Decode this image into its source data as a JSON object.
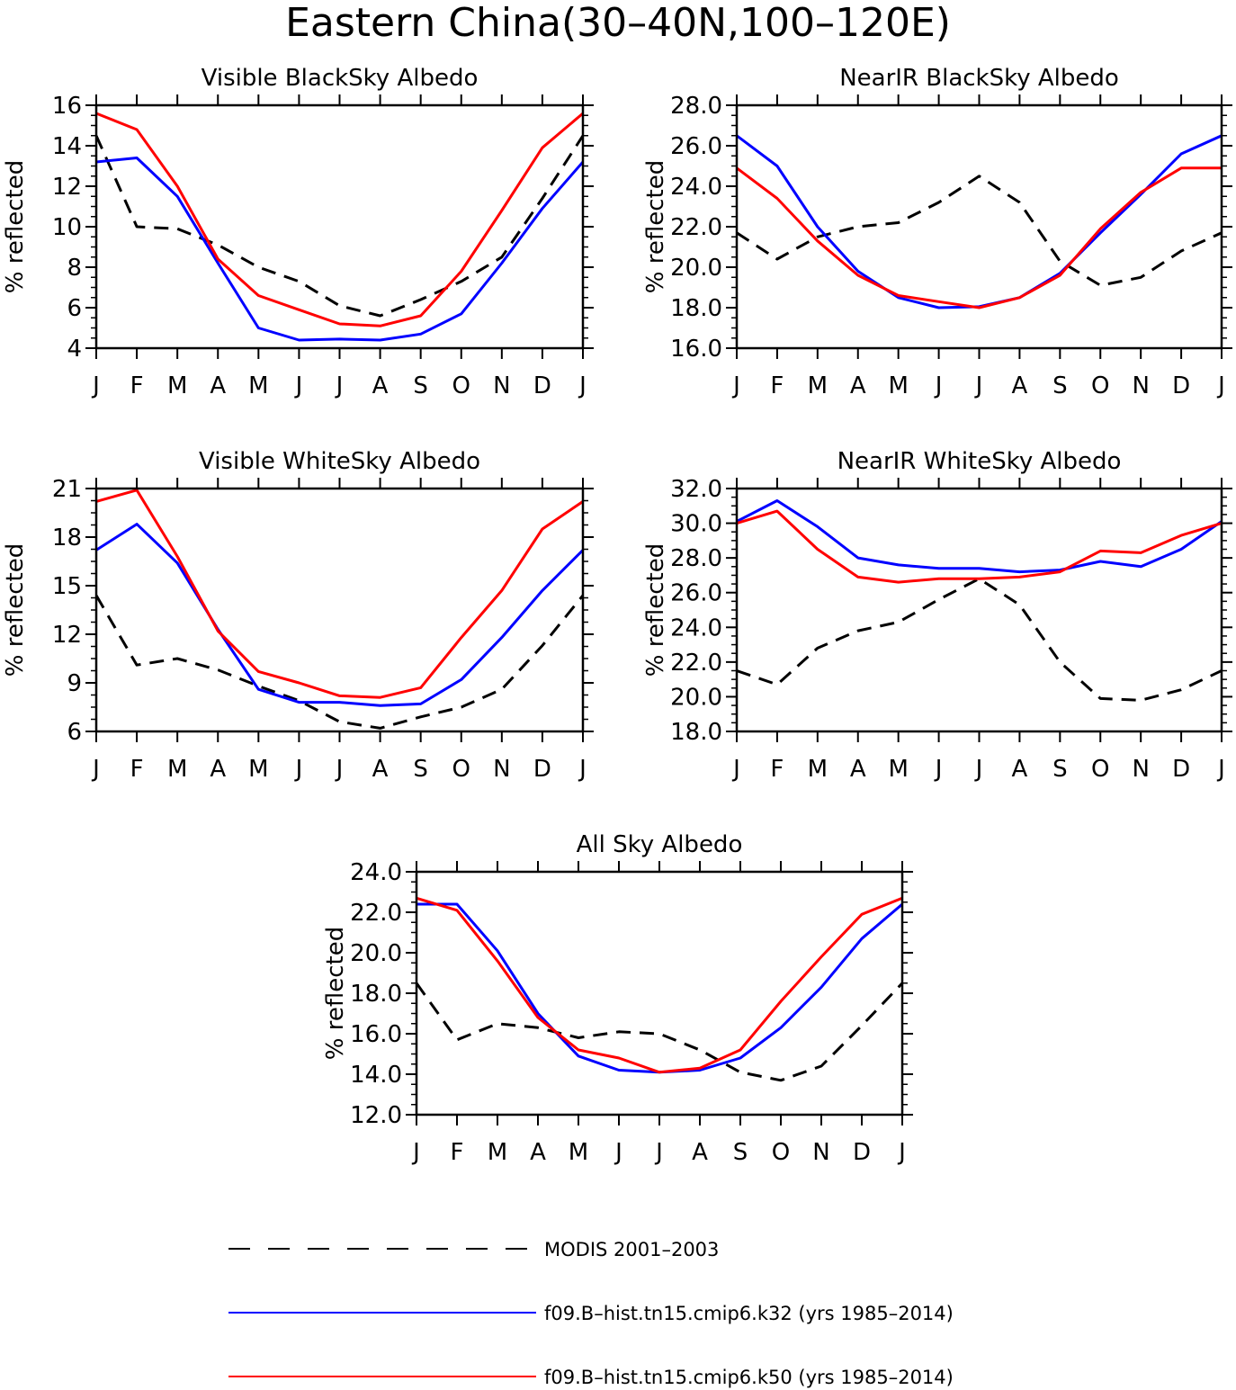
{
  "figure_title": "Eastern China(30–40N,100–120E)",
  "legend": [
    {
      "label": "MODIS 2001–2003",
      "color": "#000000",
      "dash": true
    },
    {
      "label": "f09.B–hist.tn15.cmip6.k32 (yrs 1985–2014)",
      "color": "#0000ff",
      "dash": false
    },
    {
      "label": "f09.B–hist.tn15.cmip6.k50 (yrs 1985–2014)",
      "color": "#ff0000",
      "dash": false
    }
  ],
  "chart_data": [
    {
      "type": "line",
      "title": "Visible BlackSky Albedo",
      "ylabel": "% reflected",
      "categories": [
        "J",
        "F",
        "M",
        "A",
        "M",
        "J",
        "J",
        "A",
        "S",
        "O",
        "N",
        "D",
        "J"
      ],
      "ylim": [
        4,
        16
      ],
      "yticks": [
        "4",
        "6",
        "8",
        "10",
        "12",
        "14",
        "16"
      ],
      "series": [
        {
          "name": "MODIS 2001–2003",
          "values": [
            14.5,
            10.0,
            9.9,
            9.1,
            8.0,
            7.3,
            6.1,
            5.6,
            6.4,
            7.3,
            8.5,
            11.4,
            14.5
          ]
        },
        {
          "name": "f09.B–hist.tn15.cmip6.k32 (yrs 1985–2014)",
          "values": [
            13.2,
            13.4,
            11.5,
            8.2,
            5.0,
            4.4,
            4.45,
            4.4,
            4.7,
            5.7,
            8.2,
            10.9,
            13.2
          ]
        },
        {
          "name": "f09.B–hist.tn15.cmip6.k50 (yrs 1985–2014)",
          "values": [
            15.6,
            14.8,
            12.0,
            8.4,
            6.6,
            5.9,
            5.2,
            5.1,
            5.6,
            7.8,
            10.8,
            13.9,
            15.6
          ]
        }
      ]
    },
    {
      "type": "line",
      "title": "NearIR BlackSky Albedo",
      "ylabel": "% reflected",
      "categories": [
        "J",
        "F",
        "M",
        "A",
        "M",
        "J",
        "J",
        "A",
        "S",
        "O",
        "N",
        "D",
        "J"
      ],
      "ylim": [
        16,
        28
      ],
      "yticks": [
        "16.0",
        "18.0",
        "20.0",
        "22.0",
        "24.0",
        "26.0",
        "28.0"
      ],
      "series": [
        {
          "name": "MODIS 2001–2003",
          "values": [
            21.7,
            20.4,
            21.5,
            22.0,
            22.2,
            23.2,
            24.5,
            23.2,
            20.3,
            19.1,
            19.5,
            20.8,
            21.7
          ]
        },
        {
          "name": "f09.B–hist.tn15.cmip6.k32 (yrs 1985–2014)",
          "values": [
            26.5,
            25.0,
            22.0,
            19.8,
            18.5,
            18.0,
            18.05,
            18.5,
            19.7,
            21.7,
            23.6,
            25.6,
            26.5
          ]
        },
        {
          "name": "f09.B–hist.tn15.cmip6.k50 (yrs 1985–2014)",
          "values": [
            24.9,
            23.4,
            21.3,
            19.6,
            18.6,
            18.3,
            18.0,
            18.5,
            19.6,
            21.9,
            23.7,
            24.9,
            24.9
          ]
        }
      ]
    },
    {
      "type": "line",
      "title": "Visible WhiteSky Albedo",
      "ylabel": "% reflected",
      "categories": [
        "J",
        "F",
        "M",
        "A",
        "M",
        "J",
        "J",
        "A",
        "S",
        "O",
        "N",
        "D",
        "J"
      ],
      "ylim": [
        6,
        21
      ],
      "yticks": [
        "6",
        "9",
        "12",
        "15",
        "18",
        "21"
      ],
      "series": [
        {
          "name": "MODIS 2001–2003",
          "values": [
            14.4,
            10.1,
            10.5,
            9.8,
            8.8,
            7.9,
            6.6,
            6.2,
            6.9,
            7.5,
            8.6,
            11.3,
            14.4
          ]
        },
        {
          "name": "f09.B–hist.tn15.cmip6.k32 (yrs 1985–2014)",
          "values": [
            17.2,
            18.8,
            16.4,
            12.3,
            8.6,
            7.8,
            7.8,
            7.6,
            7.7,
            9.2,
            11.8,
            14.7,
            17.2
          ]
        },
        {
          "name": "f09.B–hist.tn15.cmip6.k50 (yrs 1985–2014)",
          "values": [
            20.2,
            20.9,
            16.8,
            12.2,
            9.7,
            9.0,
            8.2,
            8.1,
            8.7,
            11.8,
            14.7,
            18.5,
            20.2
          ]
        }
      ]
    },
    {
      "type": "line",
      "title": "NearIR WhiteSky Albedo",
      "ylabel": "% reflected",
      "categories": [
        "J",
        "F",
        "M",
        "A",
        "M",
        "J",
        "J",
        "A",
        "S",
        "O",
        "N",
        "D",
        "J"
      ],
      "ylim": [
        18,
        32
      ],
      "yticks": [
        "18.0",
        "20.0",
        "22.0",
        "24.0",
        "26.0",
        "28.0",
        "30.0",
        "32.0"
      ],
      "series": [
        {
          "name": "MODIS 2001–2003",
          "values": [
            21.5,
            20.7,
            22.8,
            23.8,
            24.3,
            25.6,
            26.8,
            25.3,
            22.0,
            19.9,
            19.8,
            20.4,
            21.5
          ]
        },
        {
          "name": "f09.B–hist.tn15.cmip6.k32 (yrs 1985–2014)",
          "values": [
            30.1,
            31.3,
            29.8,
            28.0,
            27.6,
            27.4,
            27.4,
            27.2,
            27.3,
            27.8,
            27.5,
            28.5,
            30.1
          ]
        },
        {
          "name": "f09.B–hist.tn15.cmip6.k50 (yrs 1985–2014)",
          "values": [
            30.0,
            30.7,
            28.5,
            26.9,
            26.6,
            26.8,
            26.8,
            26.9,
            27.2,
            28.4,
            28.3,
            29.3,
            30.0
          ]
        }
      ]
    },
    {
      "type": "line",
      "title": "All Sky Albedo",
      "ylabel": "% reflected",
      "categories": [
        "J",
        "F",
        "M",
        "A",
        "M",
        "J",
        "J",
        "A",
        "S",
        "O",
        "N",
        "D",
        "J"
      ],
      "ylim": [
        12,
        24
      ],
      "yticks": [
        "12.0",
        "14.0",
        "16.0",
        "18.0",
        "20.0",
        "22.0",
        "24.0"
      ],
      "series": [
        {
          "name": "MODIS 2001–2003",
          "values": [
            18.5,
            15.7,
            16.5,
            16.3,
            15.8,
            16.1,
            16.0,
            15.2,
            14.1,
            13.7,
            14.4,
            16.4,
            18.5
          ]
        },
        {
          "name": "f09.B–hist.tn15.cmip6.k32 (yrs 1985–2014)",
          "values": [
            22.4,
            22.4,
            20.1,
            17.0,
            14.9,
            14.2,
            14.1,
            14.2,
            14.8,
            16.3,
            18.3,
            20.7,
            22.4
          ]
        },
        {
          "name": "f09.B–hist.tn15.cmip6.k50 (yrs 1985–2014)",
          "values": [
            22.7,
            22.1,
            19.6,
            16.8,
            15.2,
            14.8,
            14.1,
            14.3,
            15.2,
            17.6,
            19.8,
            21.9,
            22.7
          ]
        }
      ]
    }
  ]
}
